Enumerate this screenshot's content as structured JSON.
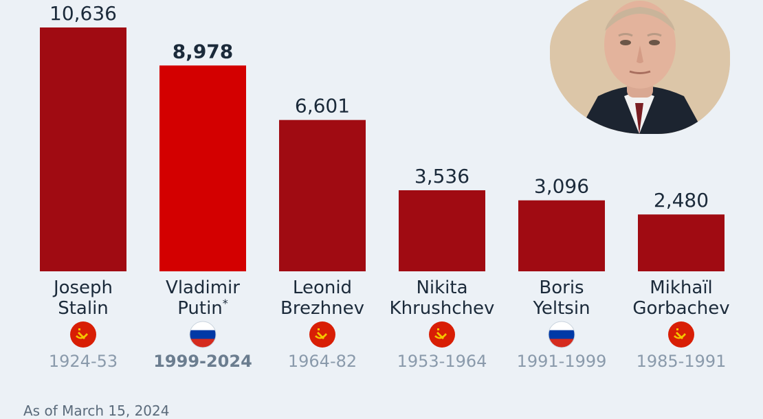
{
  "chart_data": {
    "type": "bar",
    "categories": [
      "Joseph Stalin",
      "Vladimir Putin*",
      "Leonid Brezhnev",
      "Nikita Khrushchev",
      "Boris Yeltsin",
      "Mikhaïl Gorbachev"
    ],
    "name_lines": [
      [
        "Joseph",
        "Stalin"
      ],
      [
        "Vladimir",
        "Putin"
      ],
      [
        "Leonid",
        "Brezhnev"
      ],
      [
        "Nikita",
        "Khrushchev"
      ],
      [
        "Boris",
        "Yeltsin"
      ],
      [
        "Mikhaïl",
        "Gorbachev"
      ]
    ],
    "values": [
      10636,
      8978,
      6601,
      3536,
      3096,
      2480
    ],
    "value_labels": [
      "10,636",
      "8,978",
      "6,601",
      "3,536",
      "3,096",
      "2,480"
    ],
    "periods": [
      "1924-53",
      "1999-2024",
      "1964-82",
      "1953-1964",
      "1991-1999",
      "1985-1991"
    ],
    "flags": [
      "ussr-flag-icon",
      "russia-flag-icon",
      "ussr-flag-icon",
      "ussr-flag-icon",
      "russia-flag-icon",
      "ussr-flag-icon"
    ],
    "highlight_index": 1,
    "footnote_marker": "*",
    "colors": {
      "bar": "#a00b12",
      "highlight": "#d30000",
      "ussr_flag": "#d81e05",
      "ussr_symbol": "#f5c400",
      "russia_white": "#ffffff",
      "russia_blue": "#0039a6",
      "russia_red": "#d52b1e"
    }
  },
  "footnote": "As of March 15, 2024",
  "photo": {
    "icon": "leader-portrait-photo"
  }
}
